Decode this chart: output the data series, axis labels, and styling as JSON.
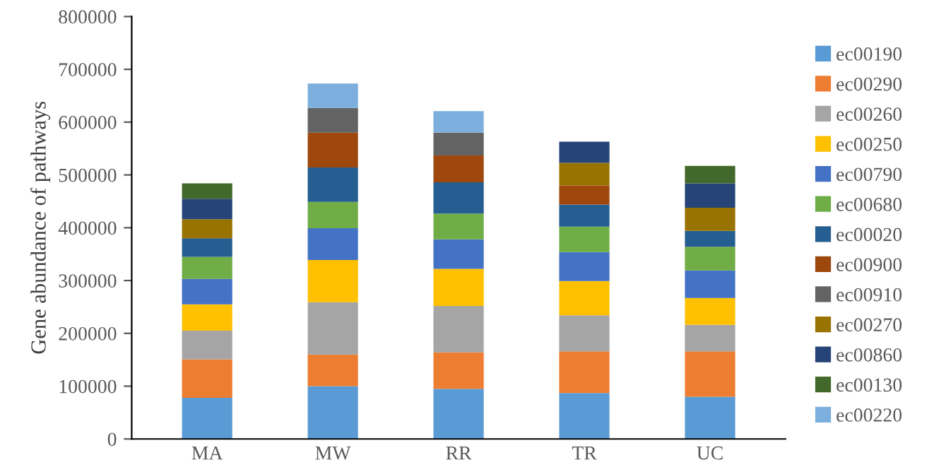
{
  "chart_data": {
    "type": "bar",
    "stacked": true,
    "ylabel": "Gene abundance of pathways",
    "categories": [
      "MA",
      "MW",
      "RR",
      "TR",
      "UC"
    ],
    "series": [
      {
        "name": "ec00190",
        "color": "#5b9bd5",
        "values": [
          78000,
          100000,
          95000,
          87000,
          80000
        ]
      },
      {
        "name": "ec00290",
        "color": "#ed7d31",
        "values": [
          73000,
          60000,
          69000,
          79000,
          86000
        ]
      },
      {
        "name": "ec00260",
        "color": "#a5a5a5",
        "values": [
          54000,
          99000,
          88000,
          68000,
          50000
        ]
      },
      {
        "name": "ec00250",
        "color": "#ffc000",
        "values": [
          50000,
          80000,
          70000,
          65000,
          51000
        ]
      },
      {
        "name": "ec00790",
        "color": "#4472c4",
        "values": [
          48000,
          60000,
          56000,
          55000,
          52000
        ]
      },
      {
        "name": "ec00680",
        "color": "#70ad47",
        "values": [
          42000,
          50000,
          49000,
          48000,
          45000
        ]
      },
      {
        "name": "ec00020",
        "color": "#255e91",
        "values": [
          35000,
          65000,
          59000,
          42000,
          30000
        ]
      },
      {
        "name": "ec00900",
        "color": "#9e480e",
        "values": [
          null,
          66000,
          51000,
          36000,
          null
        ]
      },
      {
        "name": "ec00910",
        "color": "#636363",
        "values": [
          null,
          47000,
          43000,
          null,
          null
        ]
      },
      {
        "name": "ec00270",
        "color": "#997300",
        "values": [
          36000,
          null,
          null,
          43000,
          44000
        ]
      },
      {
        "name": "ec00860",
        "color": "#264478",
        "values": [
          39000,
          null,
          null,
          40000,
          46000
        ]
      },
      {
        "name": "ec00130",
        "color": "#43682b",
        "values": [
          29000,
          null,
          null,
          null,
          33000
        ]
      },
      {
        "name": "ec00220",
        "color": "#7cafdd",
        "values": [
          null,
          46000,
          41000,
          null,
          null
        ]
      }
    ],
    "ylim": [
      0,
      800000
    ],
    "yticks": [
      0,
      100000,
      200000,
      300000,
      400000,
      500000,
      600000,
      700000,
      800000
    ],
    "grid": false,
    "legend": "right"
  }
}
